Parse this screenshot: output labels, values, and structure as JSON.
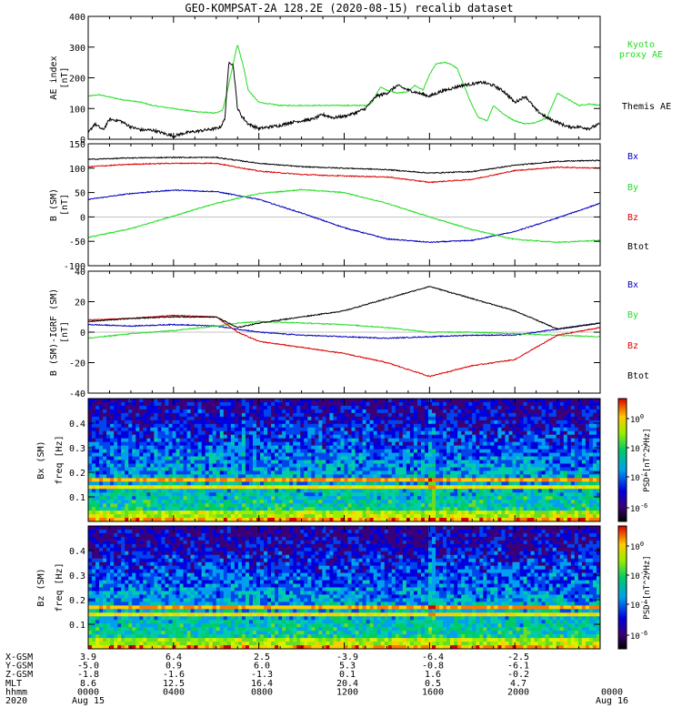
{
  "title": "GEO-KOMPSAT-2A 128.2E (2020-08-15) recalib dataset",
  "colors": {
    "black": "#000000",
    "red": "#dd0000",
    "green": "#22dd22",
    "blue": "#0000bb",
    "kyoto": "#33dd33"
  },
  "chart_data": [
    {
      "type": "line",
      "name": "ae-index",
      "ylabel": "AE index",
      "yunit": "[nT]",
      "ylim": [
        0,
        400
      ],
      "yticks": [
        0,
        100,
        200,
        300,
        400
      ],
      "xlim": [
        0,
        24
      ],
      "series": [
        {
          "name": "Kyoto proxy AE",
          "legend_lines": [
            "Kyoto",
            "proxy AE"
          ],
          "color": "green",
          "x": [
            0,
            0.5,
            1.5,
            2.5,
            3,
            4,
            5,
            6,
            6.3,
            6.5,
            7,
            7.3,
            7.5,
            8,
            9,
            10,
            12,
            13,
            13.3,
            13.7,
            14,
            14.5,
            15,
            15.3,
            15.7,
            16,
            16.3,
            16.7,
            17,
            17.3,
            17.7,
            18,
            18.3,
            18.7,
            19,
            19.5,
            20,
            20.5,
            21,
            21.5,
            22,
            22.5,
            23,
            23.5,
            24
          ],
          "y": [
            140,
            145,
            130,
            120,
            110,
            100,
            90,
            85,
            95,
            150,
            310,
            230,
            160,
            120,
            110,
            110,
            110,
            110,
            120,
            170,
            160,
            150,
            155,
            175,
            160,
            210,
            245,
            250,
            245,
            230,
            160,
            110,
            70,
            60,
            110,
            80,
            60,
            50,
            55,
            70,
            150,
            130,
            110,
            115,
            110
          ]
        },
        {
          "name": "Themis AE",
          "legend_lines": [
            "Themis AE"
          ],
          "color": "black",
          "x": [
            0,
            0.3,
            0.7,
            1,
            1.5,
            2,
            2.5,
            3,
            3.5,
            4,
            4.5,
            5,
            5.5,
            6,
            6.2,
            6.4,
            6.6,
            6.8,
            7,
            7.2,
            7.5,
            8,
            8.5,
            9,
            9.5,
            10,
            10.5,
            11,
            11.5,
            12,
            12.5,
            13,
            13.5,
            14,
            14.5,
            15,
            15.5,
            16,
            16.5,
            17,
            17.5,
            18,
            18.5,
            19,
            19.5,
            20,
            20.5,
            21,
            21.5,
            22,
            22.5,
            23,
            23.5,
            24
          ],
          "y": [
            20,
            50,
            30,
            65,
            60,
            40,
            30,
            30,
            20,
            10,
            20,
            25,
            30,
            35,
            40,
            65,
            255,
            240,
            100,
            75,
            50,
            35,
            40,
            45,
            55,
            60,
            65,
            80,
            70,
            75,
            85,
            100,
            140,
            150,
            175,
            160,
            150,
            140,
            155,
            165,
            175,
            180,
            185,
            175,
            155,
            120,
            140,
            95,
            70,
            55,
            40,
            40,
            35,
            50
          ]
        }
      ]
    },
    {
      "type": "line",
      "name": "b-sm",
      "ylabel": "B (SM)",
      "yunit": "[nT]",
      "ylim": [
        -100,
        150
      ],
      "yticks": [
        -100,
        -50,
        0,
        50,
        100,
        150
      ],
      "xlim": [
        0,
        24
      ],
      "series": [
        {
          "name": "Bx",
          "color": "blue",
          "x": [
            0,
            2,
            4,
            6,
            8,
            10,
            12,
            14,
            16,
            18,
            20,
            22,
            24
          ],
          "y": [
            36,
            48,
            55,
            52,
            36,
            8,
            -22,
            -45,
            -52,
            -48,
            -30,
            -2,
            28
          ]
        },
        {
          "name": "By",
          "color": "green",
          "x": [
            0,
            2,
            4,
            6,
            8,
            10,
            12,
            14,
            16,
            18,
            20,
            22,
            24
          ],
          "y": [
            -42,
            -24,
            2,
            28,
            48,
            56,
            50,
            28,
            0,
            -26,
            -46,
            -52,
            -48
          ]
        },
        {
          "name": "Bz",
          "color": "red",
          "x": [
            0,
            2,
            4,
            6,
            8,
            10,
            12,
            14,
            16,
            18,
            20,
            22,
            24
          ],
          "y": [
            103,
            108,
            110,
            110,
            94,
            87,
            84,
            82,
            71,
            77,
            95,
            102,
            100
          ]
        },
        {
          "name": "Btot",
          "color": "black",
          "x": [
            0,
            2,
            4,
            6,
            8,
            10,
            12,
            14,
            16,
            18,
            20,
            22,
            24
          ],
          "y": [
            118,
            121,
            122,
            122,
            110,
            103,
            100,
            97,
            90,
            93,
            106,
            114,
            116
          ]
        }
      ]
    },
    {
      "type": "line",
      "name": "b-sm-igrf",
      "ylabel": "B (SM)-IGRF (SM)",
      "yunit": "[nT]",
      "ylim": [
        -40,
        40
      ],
      "yticks": [
        -40,
        -20,
        0,
        20,
        40
      ],
      "xlim": [
        0,
        24
      ],
      "series": [
        {
          "name": "Bx",
          "color": "blue",
          "x": [
            0,
            2,
            4,
            6,
            7,
            8,
            10,
            12,
            14,
            16,
            18,
            20,
            22,
            24
          ],
          "y": [
            5,
            4,
            5,
            4,
            2,
            0,
            -2,
            -3,
            -4,
            -3,
            -2,
            -2,
            2,
            6
          ]
        },
        {
          "name": "By",
          "color": "green",
          "x": [
            0,
            2,
            4,
            6,
            7,
            8,
            10,
            12,
            14,
            16,
            18,
            20,
            22,
            24
          ],
          "y": [
            -4,
            -1,
            1,
            4,
            6,
            7,
            6,
            5,
            3,
            0,
            0,
            -1,
            -2,
            -3
          ]
        },
        {
          "name": "Bz",
          "color": "red",
          "x": [
            0,
            2,
            4,
            6,
            7,
            8,
            10,
            12,
            14,
            16,
            18,
            20,
            22,
            24
          ],
          "y": [
            8,
            9,
            11,
            10,
            0,
            -6,
            -10,
            -14,
            -20,
            -29,
            -22,
            -18,
            -2,
            3
          ]
        },
        {
          "name": "Btot",
          "color": "black",
          "x": [
            0,
            2,
            4,
            6,
            7,
            8,
            10,
            12,
            14,
            16,
            18,
            20,
            22,
            24
          ],
          "y": [
            7,
            9,
            10,
            10,
            3,
            6,
            10,
            14,
            22,
            30,
            22,
            14,
            2,
            6
          ]
        }
      ]
    },
    {
      "type": "heatmap",
      "name": "bx-spectrogram",
      "ylabel": "Bx (SM)",
      "ysublabel": "freq [Hz]",
      "ylim": [
        0,
        0.5
      ],
      "yticks": [
        0.1,
        0.2,
        0.3,
        0.4
      ],
      "xlim": [
        0,
        24
      ],
      "colorbar_label": "PSD [nT^2/Hz]",
      "colorbar_ticks": [
        "10^0",
        "10^-2",
        "10^-4",
        "10^-6"
      ]
    },
    {
      "type": "heatmap",
      "name": "bz-spectrogram",
      "ylabel": "Bz (SM)",
      "ysublabel": "freq [Hz]",
      "ylim": [
        0,
        0.5
      ],
      "yticks": [
        0.1,
        0.2,
        0.3,
        0.4
      ],
      "xlim": [
        0,
        24
      ],
      "colorbar_label": "PSD [nT^2/Hz]",
      "colorbar_ticks": [
        "10^0",
        "10^-2",
        "10^-4",
        "10^-6"
      ]
    }
  ],
  "footer": {
    "rows": [
      {
        "label": "X-GSM",
        "values": [
          "3.9",
          "6.4",
          "2.5",
          "-3.9",
          "-6.4",
          "-2.5"
        ]
      },
      {
        "label": "Y-GSM",
        "values": [
          "-5.0",
          "0.9",
          "6.0",
          "5.3",
          "-0.8",
          "-6.1"
        ]
      },
      {
        "label": "Z-GSM",
        "values": [
          "-1.8",
          "-1.6",
          "-1.3",
          "0.1",
          "1.6",
          "-0.2"
        ]
      },
      {
        "label": "MLT",
        "values": [
          "8.6",
          "12.5",
          "16.4",
          "20.4",
          "0.5",
          "4.7"
        ]
      },
      {
        "label": "hhmm",
        "values": [
          "0000",
          "0400",
          "0800",
          "1200",
          "1600",
          "2000",
          "0000"
        ]
      },
      {
        "label": "2020",
        "values": [
          "Aug 15",
          "",
          "",
          "",
          "",
          "",
          "Aug 16"
        ]
      }
    ]
  }
}
